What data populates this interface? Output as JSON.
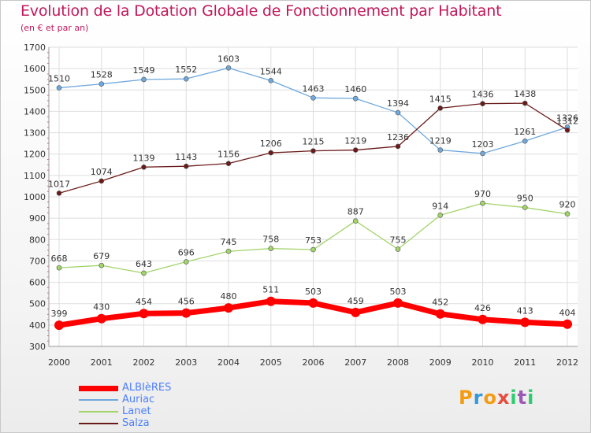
{
  "header": {
    "title": "Evolution de la Dotation Globale de Fonctionnement par Habitant",
    "subtitle": "(en € et par an)"
  },
  "logo": {
    "letters": [
      "P",
      "r",
      "o",
      "x",
      "i",
      "t",
      "i"
    ],
    "colors": [
      "#f39c12",
      "#3498db",
      "#f39c12",
      "#e74c3c",
      "#2ecc71",
      "#9b59b6",
      "#2ecc71"
    ]
  },
  "chart_data": {
    "type": "line",
    "title": "Evolution de la Dotation Globale de Fonctionnement par Habitant",
    "subtitle": "(en € et par an)",
    "x": [
      "2000",
      "2001",
      "2002",
      "2003",
      "2004",
      "2005",
      "2006",
      "2007",
      "2008",
      "2009",
      "2010",
      "2011",
      "2012"
    ],
    "ylim": [
      300,
      1700
    ],
    "yticks": [
      300,
      400,
      500,
      600,
      700,
      800,
      900,
      1000,
      1100,
      1200,
      1300,
      1400,
      1500,
      1600,
      1700
    ],
    "grid": true,
    "legend_position": "bottom-left",
    "series": [
      {
        "name": "ALBIèRES",
        "color": "#ff0000",
        "values": [
          399,
          430,
          454,
          456,
          480,
          511,
          503,
          459,
          503,
          452,
          426,
          413,
          404
        ],
        "labels": [
          "399",
          "430",
          "454",
          "456",
          "480",
          "511",
          "503",
          "459",
          "503",
          "452",
          "426",
          "413",
          "404"
        ]
      },
      {
        "name": "Auriac",
        "color": "#6fa8dc",
        "values": [
          1510,
          1528,
          1549,
          1552,
          1603,
          1544,
          1463,
          1460,
          1394,
          1219,
          1203,
          1261,
          1326
        ],
        "labels": [
          "1510",
          "1528",
          "1549",
          "1552",
          "1603",
          "1544",
          "1463",
          "1460",
          "1394",
          "1219",
          "1203",
          "1261",
          "1326"
        ]
      },
      {
        "name": "Lanet",
        "color": "#a2d46a",
        "values": [
          668,
          679,
          643,
          696,
          745,
          758,
          753,
          887,
          755,
          914,
          970,
          950,
          920
        ],
        "labels": [
          "668",
          "679",
          "643",
          "696",
          "745",
          "758",
          "753",
          "887",
          "755",
          "914",
          "970",
          "950",
          "920"
        ]
      },
      {
        "name": "Salza",
        "color": "#6b1a1a",
        "values": [
          1017,
          1074,
          1139,
          1143,
          1156,
          1206,
          1215,
          1219,
          1236,
          1415,
          1436,
          1438,
          1312
        ],
        "labels": [
          "1017",
          "1074",
          "1139",
          "1143",
          "1156",
          "1206",
          "1215",
          "1219",
          "1236",
          "1415",
          "1436",
          "1438",
          "1312"
        ]
      }
    ]
  }
}
